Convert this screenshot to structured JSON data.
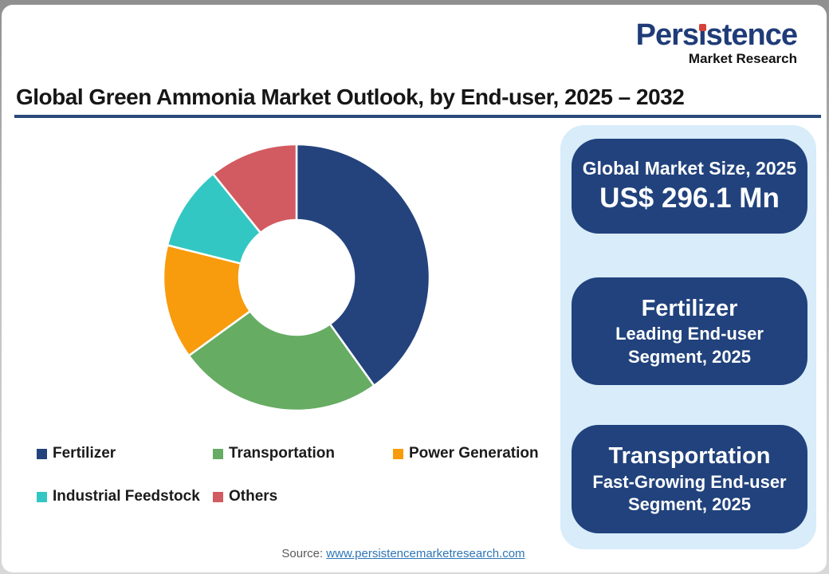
{
  "logo": {
    "name": "Persistence",
    "part1": "Pers",
    "part2": "ı",
    "part3": "stence",
    "tagline": "Market Research",
    "navy": "#1f3c78",
    "dot_red": "#d6413c",
    "tagline_color": "#111111"
  },
  "title": {
    "text": "Global Green Ammonia Market Outlook, by End-user, 2025 – 2032",
    "underline_color": "#294a7b"
  },
  "chart_data": {
    "type": "pie",
    "subtype": "donut",
    "title": "Global Green Ammonia Market Outlook, by End-user, 2025 – 2032",
    "labels": [
      "Fertilizer",
      "Transportation",
      "Power Generation",
      "Industrial Feedstock",
      "Others"
    ],
    "values_pct": [
      40.1,
      24.9,
      13.9,
      10.3,
      10.8
    ],
    "colors": [
      "#24437d",
      "#66ac63",
      "#f89b0d",
      "#32c7c3",
      "#d25b61"
    ],
    "start_angle_deg": 0,
    "direction": "clockwise",
    "inner_radius_ratio": 0.43,
    "legend_position": "bottom"
  },
  "legend": {
    "items": [
      {
        "label": "Fertilizer"
      },
      {
        "label": "Transportation"
      },
      {
        "label": "Power Generation"
      },
      {
        "label": "Industrial Feedstock"
      },
      {
        "label": "Others"
      }
    ]
  },
  "panel": {
    "bg": "#d8ecfa",
    "box_bg": "#21427c",
    "boxes": [
      {
        "title": "Global Market Size, 2025",
        "value": "US$ 296.1 Mn"
      },
      {
        "title": "Fertilizer",
        "lines": [
          "Leading End-user",
          "Segment, 2025"
        ]
      },
      {
        "title": "Transportation",
        "lines": [
          "Fast-Growing End-user",
          "Segment, 2025"
        ]
      }
    ]
  },
  "footer": {
    "source_label": "Source:",
    "source_link": "www.persistencemarketresearch.com",
    "link_color": "#2e75b6"
  }
}
